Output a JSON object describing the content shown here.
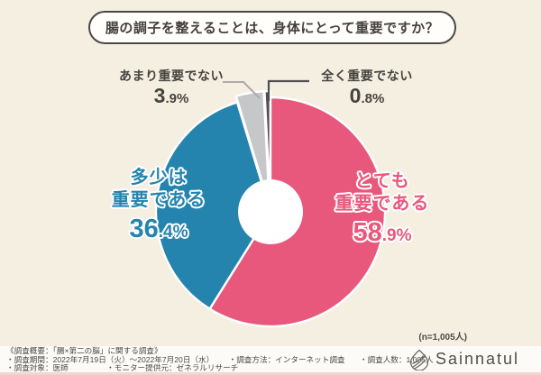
{
  "chart_data": {
    "type": "pie",
    "title": "腸の調子を整えることは、身体にとって重要ですか？",
    "sample_label": "(n=1,005人)",
    "direction": "clockwise",
    "start_angle_deg": 0,
    "donut_hole_ratio": 0.28,
    "slices": [
      {
        "label": "とても重要である",
        "lines": [
          "とても",
          "重要である"
        ],
        "value": 58.9,
        "color": "#e8587c"
      },
      {
        "label": "多少は重要である",
        "lines": [
          "多少は",
          "重要である"
        ],
        "value": 36.4,
        "color": "#2484ae"
      },
      {
        "label": "あまり重要でない",
        "value": 3.9,
        "color": "#c5c7c9"
      },
      {
        "label": "全く重要でない",
        "value": 0.8,
        "color": "#524f55"
      }
    ]
  },
  "footer": {
    "overview": "《調査概要：「腸×第二の脳」に関する調査》",
    "period": "・調査期間：2022年7月19日（火）～2022年7月20日（水）",
    "method": "・調査方法：インターネット調査",
    "respondents": "・調査人数：1,005人",
    "target": "・調査対象：医師",
    "monitor": "・モニター提供元：ゼネラルリサーチ"
  },
  "brand": {
    "name": "Sainnatul",
    "icon": "leaf-drop-icon"
  }
}
